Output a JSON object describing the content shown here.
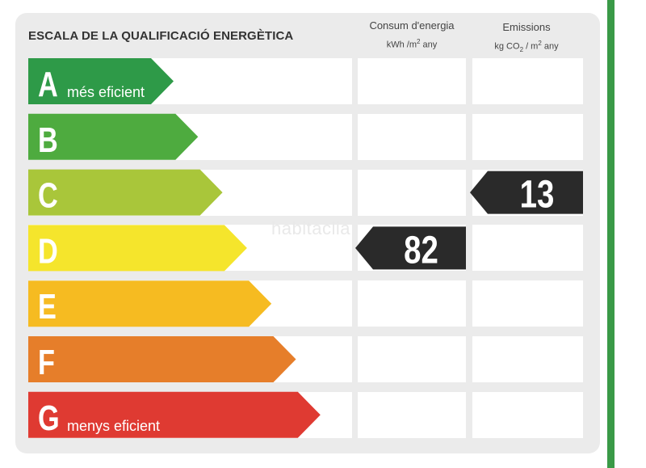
{
  "title": "ESCALA DE LA QUALIFICACIÓ ENERGÈTICA",
  "columns": {
    "consumption": {
      "label": "Consum d'energia",
      "unit_prefix": "kWh /m",
      "unit_sup": "2",
      "unit_suffix": " any"
    },
    "emissions": {
      "label": "Emissions",
      "unit_prefix": "kg CO",
      "unit_sub": "2",
      "unit_mid": " / m",
      "unit_sup": "2",
      "unit_suffix": " any"
    }
  },
  "watermark": "habitaclia",
  "chart_data": {
    "type": "energy-rating",
    "classes": [
      {
        "letter": "A",
        "label": "més eficient",
        "color": "#2e9a48"
      },
      {
        "letter": "B",
        "label": "",
        "color": "#4eab3f"
      },
      {
        "letter": "C",
        "label": "",
        "color": "#a9c63a"
      },
      {
        "letter": "D",
        "label": "",
        "color": "#f5e52c"
      },
      {
        "letter": "E",
        "label": "",
        "color": "#f6bb21"
      },
      {
        "letter": "F",
        "label": "",
        "color": "#e67e2a"
      },
      {
        "letter": "G",
        "label": "menys eficient",
        "color": "#df3a32"
      }
    ],
    "consumption": {
      "value": "82",
      "class": "D"
    },
    "emissions": {
      "value": "13",
      "class": "C"
    },
    "indicator_color": "#2a2a2a"
  }
}
